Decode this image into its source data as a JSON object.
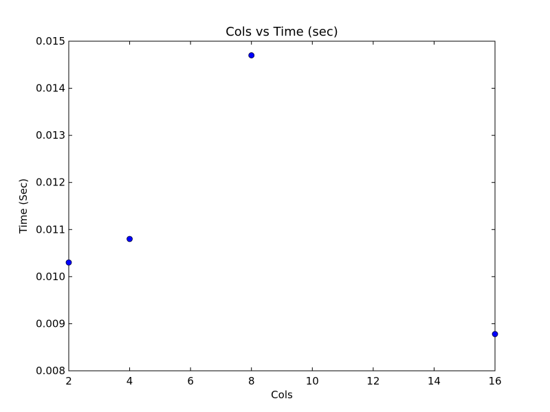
{
  "chart_data": {
    "type": "scatter",
    "title": "Cols vs Time (sec)",
    "xlabel": "Cols",
    "ylabel": "Time (Sec)",
    "xlim": [
      2,
      16
    ],
    "ylim": [
      0.008,
      0.015
    ],
    "x_ticks": [
      2,
      4,
      6,
      8,
      10,
      12,
      14,
      16
    ],
    "x_tick_labels": [
      "2",
      "4",
      "6",
      "8",
      "10",
      "12",
      "14",
      "16"
    ],
    "y_ticks": [
      0.008,
      0.009,
      0.01,
      0.011,
      0.012,
      0.013,
      0.014,
      0.015
    ],
    "y_tick_labels": [
      "0.008",
      "0.009",
      "0.010",
      "0.011",
      "0.012",
      "0.013",
      "0.014",
      "0.015"
    ],
    "grid": false,
    "series": [
      {
        "marker_color": "#0000ff",
        "points": [
          {
            "x": 2,
            "y": 0.0103
          },
          {
            "x": 4,
            "y": 0.0108
          },
          {
            "x": 8,
            "y": 0.0147
          },
          {
            "x": 16,
            "y": 0.00878
          }
        ]
      }
    ]
  }
}
